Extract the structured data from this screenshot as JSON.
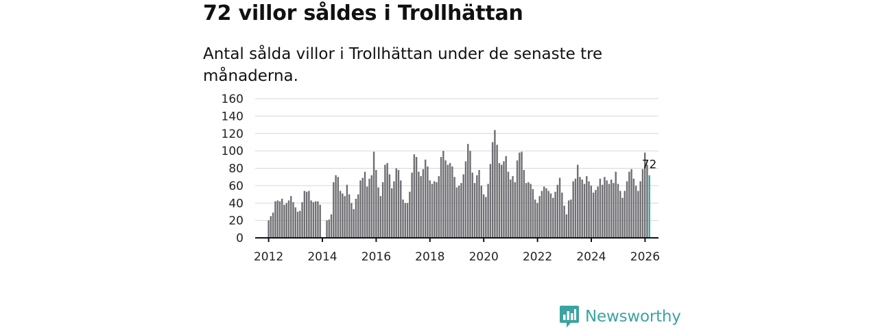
{
  "title": "72 villor såldes i Trollhättan",
  "subtitle": "Antal sålda villor i Trollhättan under de senaste tre månaderna.",
  "colors": {
    "bar": "#6e6e73",
    "highlight": "#3aa5a0",
    "grid": "#d6d6d6",
    "axis": "#111111",
    "brand": "#3ba3a0"
  },
  "chart_data": {
    "type": "bar",
    "title": "Antal sålda villor i Trollhättan under de senaste tre månaderna.",
    "xlabel": "",
    "ylabel": "",
    "ylim": [
      0,
      160
    ],
    "yticks": [
      0,
      20,
      40,
      60,
      80,
      100,
      120,
      140,
      160
    ],
    "xlim": [
      2011.5,
      2026.5
    ],
    "xticks": [
      2012,
      2014,
      2016,
      2018,
      2020,
      2022,
      2024,
      2026
    ],
    "x_start": 2012.0,
    "x_step": 0.0833,
    "grid": true,
    "annotation": {
      "label": "72",
      "value": 72
    },
    "values": [
      20,
      25,
      29,
      42,
      43,
      42,
      45,
      38,
      40,
      43,
      48,
      41,
      35,
      30,
      31,
      41,
      54,
      53,
      54,
      43,
      41,
      42,
      42,
      38,
      null,
      null,
      20,
      21,
      27,
      64,
      72,
      70,
      54,
      51,
      48,
      61,
      50,
      40,
      33,
      45,
      50,
      66,
      69,
      76,
      59,
      68,
      72,
      99,
      78,
      58,
      48,
      64,
      84,
      86,
      73,
      57,
      65,
      80,
      78,
      66,
      44,
      40,
      40,
      53,
      75,
      96,
      93,
      76,
      71,
      79,
      90,
      82,
      66,
      62,
      65,
      64,
      71,
      93,
      100,
      89,
      84,
      86,
      82,
      70,
      58,
      60,
      63,
      73,
      88,
      108,
      100,
      75,
      63,
      72,
      78,
      60,
      50,
      47,
      62,
      85,
      110,
      124,
      107,
      86,
      84,
      88,
      94,
      76,
      67,
      71,
      64,
      89,
      98,
      99,
      78,
      63,
      64,
      62,
      56,
      44,
      40,
      48,
      54,
      59,
      57,
      54,
      51,
      46,
      53,
      61,
      69,
      52,
      37,
      27,
      43,
      44,
      65,
      68,
      84,
      70,
      67,
      62,
      71,
      65,
      60,
      52,
      55,
      59,
      68,
      61,
      70,
      66,
      62,
      67,
      63,
      76,
      62,
      54,
      46,
      54,
      65,
      76,
      79,
      68,
      60,
      54,
      65,
      79,
      98,
      84,
      72
    ]
  },
  "brand": {
    "name": "Newsworthy",
    "logo_icon": "bar-chart-badge-icon"
  }
}
